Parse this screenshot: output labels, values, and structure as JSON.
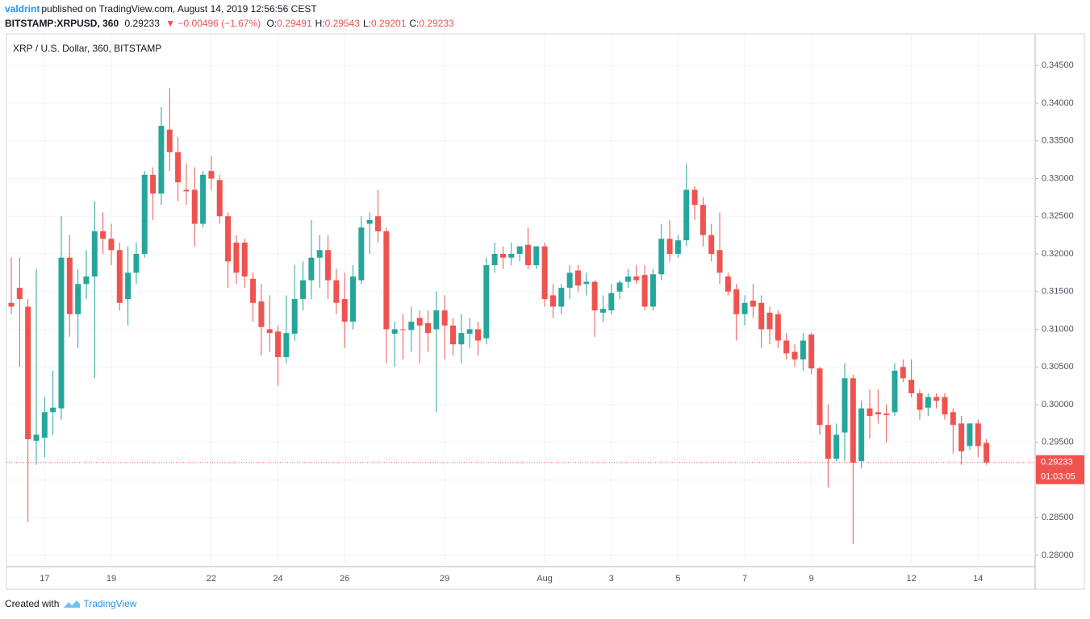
{
  "header": {
    "author": "valdrint",
    "published": "published on TradingView.com, August 14, 2019 12:56:56 CEST",
    "symbol": "BITSTAMP:XRPUSD, 360",
    "last": "0.29233",
    "change": "▼ −0.00496 (−1.67%)",
    "quote": [
      {
        "label": "O:",
        "value": "0.29491"
      },
      {
        "label": "H:",
        "value": "0.29543"
      },
      {
        "label": "L:",
        "value": "0.29201"
      },
      {
        "label": "C:",
        "value": "0.29233"
      }
    ]
  },
  "chart_data": {
    "type": "candlestick",
    "title": "XRP / U.S. Dollar, 360, BITSTAMP",
    "up_color": "#26a69a",
    "down_color": "#ef5350",
    "grid": true,
    "last_price": 0.29233,
    "countdown": "01:03:05",
    "categories": [
      null,
      null,
      null,
      null,
      "17",
      null,
      null,
      null,
      null,
      null,
      null,
      null,
      "19",
      null,
      null,
      null,
      null,
      null,
      null,
      null,
      null,
      null,
      null,
      null,
      "22",
      null,
      null,
      null,
      null,
      null,
      null,
      null,
      "24",
      null,
      null,
      null,
      null,
      null,
      null,
      null,
      "26",
      null,
      null,
      null,
      null,
      null,
      null,
      null,
      null,
      null,
      null,
      null,
      "29",
      null,
      null,
      null,
      null,
      null,
      null,
      null,
      null,
      null,
      null,
      null,
      "Aug",
      null,
      null,
      null,
      null,
      null,
      null,
      null,
      "3",
      null,
      null,
      null,
      null,
      null,
      null,
      null,
      "5",
      null,
      null,
      null,
      null,
      null,
      null,
      null,
      "7",
      null,
      null,
      null,
      null,
      null,
      null,
      null,
      "9",
      null,
      null,
      null,
      null,
      null,
      null,
      null,
      null,
      null,
      null,
      null,
      "12",
      null,
      null,
      null,
      null,
      null,
      null,
      null,
      "14",
      null
    ],
    "open": [
      0.3135,
      0.3155,
      0.313,
      0.2952,
      0.2956,
      0.299,
      0.2995,
      0.3195,
      0.312,
      0.316,
      0.317,
      0.323,
      0.322,
      0.3205,
      0.314,
      0.3175,
      0.32,
      0.3305,
      0.328,
      0.3365,
      0.3335,
      0.3285,
      0.3285,
      0.324,
      0.331,
      0.3298,
      0.325,
      0.3215,
      0.3215,
      0.3167,
      0.3137,
      0.31,
      0.3097,
      0.3063,
      0.3094,
      0.314,
      0.3165,
      0.3195,
      0.3205,
      0.3165,
      0.314,
      0.311,
      0.3165,
      0.324,
      0.325,
      0.323,
      0.3094,
      0.31,
      0.3099,
      0.3115,
      0.3108,
      0.31,
      0.3125,
      0.3105,
      0.308,
      0.3094,
      0.31,
      0.3088,
      0.3185,
      0.32,
      0.3195,
      0.32,
      0.3212,
      0.3185,
      0.321,
      0.3145,
      0.313,
      0.3155,
      0.3178,
      0.316,
      0.3163,
      0.3122,
      0.3125,
      0.315,
      0.3163,
      0.317,
      0.3172,
      0.313,
      0.3173,
      0.322,
      0.32,
      0.3218,
      0.3285,
      0.3265,
      0.3225,
      0.3205,
      0.317,
      0.3153,
      0.312,
      0.3138,
      0.3135,
      0.3122,
      0.312,
      0.3085,
      0.307,
      0.306,
      0.3093,
      0.3048,
      0.2973,
      0.2928,
      0.2963,
      0.3035,
      0.2925,
      0.2995,
      0.299,
      0.2988,
      0.299,
      0.305,
      0.3033,
      0.3015,
      0.2996,
      0.301,
      0.301,
      0.299,
      0.2975,
      0.2945,
      0.2975,
      0.29491
    ],
    "high": [
      0.3195,
      0.3195,
      0.314,
      0.318,
      0.301,
      0.3045,
      0.325,
      0.3225,
      0.318,
      0.3205,
      0.327,
      0.3255,
      0.324,
      0.3215,
      0.321,
      0.3215,
      0.331,
      0.3315,
      0.3395,
      0.342,
      0.3355,
      0.332,
      0.3315,
      0.331,
      0.333,
      0.3305,
      0.3255,
      0.3225,
      0.322,
      0.3175,
      0.316,
      0.3145,
      0.3105,
      0.3145,
      0.3185,
      0.319,
      0.3245,
      0.3225,
      0.3225,
      0.318,
      0.3175,
      0.3185,
      0.325,
      0.3255,
      0.3285,
      0.3235,
      0.311,
      0.312,
      0.313,
      0.3125,
      0.3125,
      0.315,
      0.3145,
      0.3115,
      0.312,
      0.3115,
      0.311,
      0.3195,
      0.3215,
      0.321,
      0.3215,
      0.321,
      0.3235,
      0.321,
      0.3215,
      0.316,
      0.316,
      0.3185,
      0.3185,
      0.3175,
      0.3165,
      0.3145,
      0.316,
      0.3165,
      0.318,
      0.3185,
      0.3185,
      0.318,
      0.324,
      0.3245,
      0.3225,
      0.332,
      0.329,
      0.3275,
      0.324,
      0.3255,
      0.3175,
      0.316,
      0.3145,
      0.316,
      0.3145,
      0.313,
      0.3125,
      0.3095,
      0.308,
      0.3095,
      0.3095,
      0.305,
      0.3,
      0.2975,
      0.3055,
      0.304,
      0.3005,
      0.302,
      0.302,
      0.3,
      0.3055,
      0.306,
      0.306,
      0.302,
      0.3015,
      0.3015,
      0.3015,
      0.2995,
      0.2985,
      0.2975,
      0.298,
      0.29543
    ],
    "low": [
      0.312,
      0.305,
      0.2844,
      0.292,
      0.293,
      0.296,
      0.298,
      0.309,
      0.3075,
      0.314,
      0.3035,
      0.32,
      0.3185,
      0.3125,
      0.3105,
      0.316,
      0.3195,
      0.3245,
      0.3265,
      0.331,
      0.327,
      0.3265,
      0.321,
      0.3235,
      0.3285,
      0.324,
      0.3155,
      0.316,
      0.3155,
      0.311,
      0.3065,
      0.307,
      0.3025,
      0.3055,
      0.3085,
      0.3125,
      0.314,
      0.3155,
      0.314,
      0.312,
      0.3075,
      0.31,
      0.316,
      0.32,
      0.3215,
      0.3055,
      0.305,
      0.306,
      0.307,
      0.3055,
      0.307,
      0.299,
      0.306,
      0.3065,
      0.3055,
      0.3075,
      0.3065,
      0.308,
      0.3175,
      0.318,
      0.3185,
      0.319,
      0.318,
      0.318,
      0.313,
      0.3115,
      0.312,
      0.314,
      0.315,
      0.3145,
      0.309,
      0.311,
      0.312,
      0.314,
      0.3155,
      0.316,
      0.3125,
      0.3125,
      0.3165,
      0.319,
      0.3195,
      0.321,
      0.3245,
      0.321,
      0.319,
      0.316,
      0.3145,
      0.3085,
      0.3105,
      0.3115,
      0.3075,
      0.308,
      0.3075,
      0.306,
      0.305,
      0.3045,
      0.304,
      0.296,
      0.289,
      0.2925,
      0.2925,
      0.2815,
      0.2915,
      0.2955,
      0.2975,
      0.295,
      0.2985,
      0.303,
      0.301,
      0.298,
      0.2985,
      0.2995,
      0.298,
      0.2935,
      0.292,
      0.294,
      0.293,
      0.29201
    ],
    "close": [
      0.313,
      0.314,
      0.2954,
      0.296,
      0.299,
      0.2996,
      0.3195,
      0.312,
      0.316,
      0.317,
      0.323,
      0.322,
      0.3205,
      0.3135,
      0.3175,
      0.32,
      0.3305,
      0.328,
      0.337,
      0.3335,
      0.3295,
      0.3283,
      0.324,
      0.3305,
      0.33,
      0.325,
      0.319,
      0.3175,
      0.317,
      0.3135,
      0.3103,
      0.3095,
      0.3063,
      0.3095,
      0.314,
      0.3165,
      0.3195,
      0.3205,
      0.3165,
      0.3135,
      0.311,
      0.317,
      0.3235,
      0.3245,
      0.323,
      0.31,
      0.31,
      0.3099,
      0.311,
      0.3105,
      0.3095,
      0.3125,
      0.3105,
      0.308,
      0.3095,
      0.31,
      0.3085,
      0.3185,
      0.32,
      0.3195,
      0.32,
      0.321,
      0.3185,
      0.321,
      0.314,
      0.313,
      0.3155,
      0.3175,
      0.3158,
      0.3163,
      0.3125,
      0.3127,
      0.3148,
      0.3162,
      0.317,
      0.3165,
      0.313,
      0.3173,
      0.322,
      0.32,
      0.3218,
      0.3285,
      0.3265,
      0.3225,
      0.32,
      0.3175,
      0.315,
      0.312,
      0.3135,
      0.313,
      0.31,
      0.31,
      0.3085,
      0.3068,
      0.306,
      0.3085,
      0.3048,
      0.2973,
      0.2928,
      0.296,
      0.3035,
      0.2923,
      0.2995,
      0.2985,
      0.2987,
      0.2986,
      0.3045,
      0.3035,
      0.3015,
      0.2993,
      0.301,
      0.3005,
      0.2987,
      0.2973,
      0.2938,
      0.2975,
      0.2945,
      0.29233
    ],
    "ylim": [
      0.2785,
      0.3492
    ],
    "yticks": [
      {
        "value": 0.28,
        "label": "0.28000"
      },
      {
        "value": 0.285,
        "label": "0.28500"
      },
      {
        "value": 0.29,
        "label": "0.29000"
      },
      {
        "value": 0.295,
        "label": "0.29500"
      },
      {
        "value": 0.3,
        "label": "0.30000"
      },
      {
        "value": 0.305,
        "label": "0.30500"
      },
      {
        "value": 0.31,
        "label": "0.31000"
      },
      {
        "value": 0.315,
        "label": "0.31500"
      },
      {
        "value": 0.32,
        "label": "0.32000"
      },
      {
        "value": 0.325,
        "label": "0.32500"
      },
      {
        "value": 0.33,
        "label": "0.33000"
      },
      {
        "value": 0.335,
        "label": "0.33500"
      },
      {
        "value": 0.34,
        "label": "0.34000"
      },
      {
        "value": 0.345,
        "label": "0.34500"
      }
    ]
  },
  "footer": {
    "created": "Created with",
    "brand": "TradingView"
  }
}
